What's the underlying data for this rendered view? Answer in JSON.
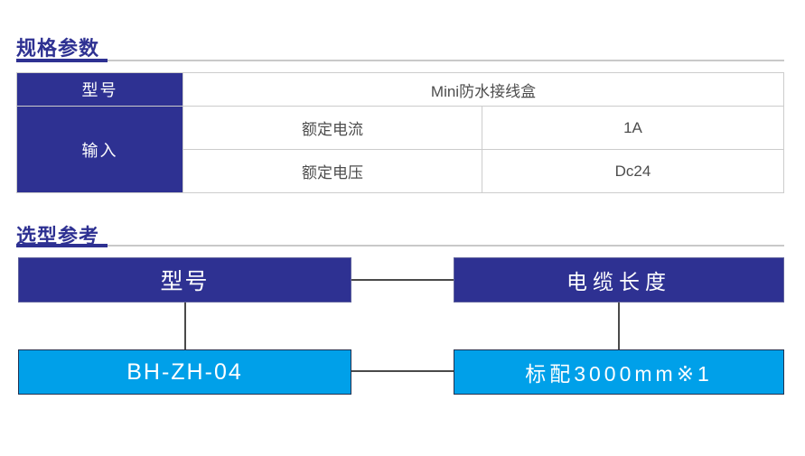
{
  "headings": {
    "spec": "规格参数",
    "selection": "选型参考"
  },
  "table": {
    "model_label": "型号",
    "model_value": "Mini防水接线盒",
    "input_label": "输入",
    "rows": [
      {
        "param": "额定电流",
        "value": "1A"
      },
      {
        "param": "额定电压",
        "value": "Dc24"
      }
    ]
  },
  "diagram": {
    "model_header": "型号",
    "cable_header": "电缆长度",
    "model_value": "BH-ZH-04",
    "cable_value": "标配3000mm※1"
  },
  "colors": {
    "accent_dark_blue": "#2e3192",
    "accent_cyan": "#00a0e9",
    "table_border_gray": "#cccccc",
    "rule_gray": "#c9c9c9",
    "body_text_gray": "#4d4d4d",
    "connector_gray": "#4a4a4a",
    "background": "#ffffff"
  }
}
